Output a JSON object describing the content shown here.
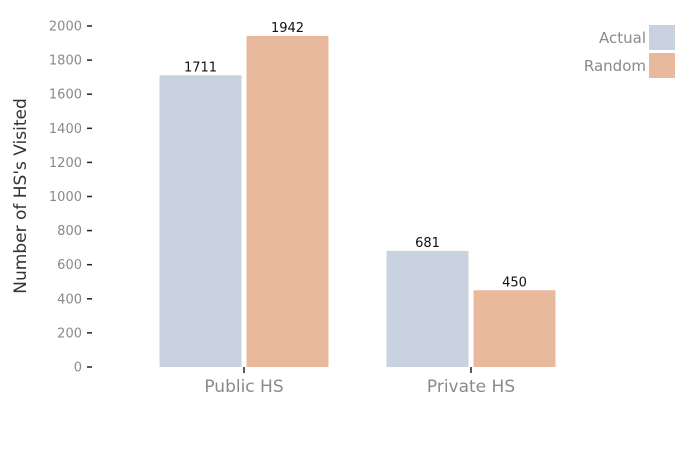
{
  "chart_data": {
    "type": "bar",
    "categories": [
      "Public HS",
      "Private HS"
    ],
    "series": [
      {
        "name": "Actual",
        "values": [
          1711,
          681
        ],
        "color": "#c9d3df"
      },
      {
        "name": "Random",
        "values": [
          1942,
          450
        ],
        "color": "#e8b99c"
      }
    ],
    "ylabel": "Number of HS's Visited",
    "xlabel": "",
    "ylim": [
      0,
      2000
    ],
    "yticks": [
      0,
      200,
      400,
      600,
      800,
      1000,
      1200,
      1400,
      1600,
      1800,
      2000
    ],
    "legend_position": "top-right",
    "grid": false
  }
}
